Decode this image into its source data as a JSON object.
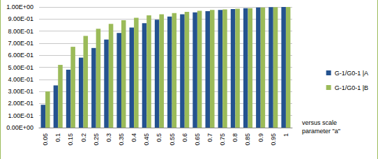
{
  "chart_data": {
    "type": "bar",
    "categories": [
      "0.05",
      "0.1",
      "0.15",
      "0.2",
      "0.25",
      "0.3",
      "0.35",
      "0.4",
      "0.45",
      "0.5",
      "0.55",
      "0.6",
      "0.65",
      "0.7",
      "0.75",
      "0.8",
      "0.85",
      "0.9",
      "0.95",
      "1"
    ],
    "series": [
      {
        "name": "G-1/G0-1 |A",
        "color": "#24528f",
        "values": [
          0.19,
          0.35,
          0.48,
          0.58,
          0.66,
          0.73,
          0.785,
          0.83,
          0.865,
          0.895,
          0.92,
          0.94,
          0.955,
          0.965,
          0.975,
          0.983,
          0.99,
          0.995,
          0.998,
          1.0
        ]
      },
      {
        "name": "G-1/G0-1 |B",
        "color": "#9bbb59",
        "values": [
          0.3,
          0.52,
          0.67,
          0.76,
          0.82,
          0.86,
          0.89,
          0.91,
          0.93,
          0.94,
          0.95,
          0.96,
          0.968,
          0.975,
          0.98,
          0.986,
          0.99,
          0.995,
          0.998,
          1.0
        ]
      }
    ],
    "annotation": "versus scale parameter \"a\"",
    "ylim": [
      0,
      1
    ],
    "yticks": [
      {
        "value": 0,
        "label": "0.00E+00"
      },
      {
        "value": 0.1,
        "label": "1.00E-01"
      },
      {
        "value": 0.2,
        "label": "2.00E-01"
      },
      {
        "value": 0.3,
        "label": "3.00E-01"
      },
      {
        "value": 0.4,
        "label": "4.00E-01"
      },
      {
        "value": 0.5,
        "label": "5.00E-01"
      },
      {
        "value": 0.6,
        "label": "6.00E-01"
      },
      {
        "value": 0.7,
        "label": "7.00E-01"
      },
      {
        "value": 0.8,
        "label": "8.00E-01"
      },
      {
        "value": 0.9,
        "label": "9.00E-01"
      },
      {
        "value": 1,
        "label": "1.00E+00"
      }
    ],
    "grid": true,
    "legend": "right"
  }
}
